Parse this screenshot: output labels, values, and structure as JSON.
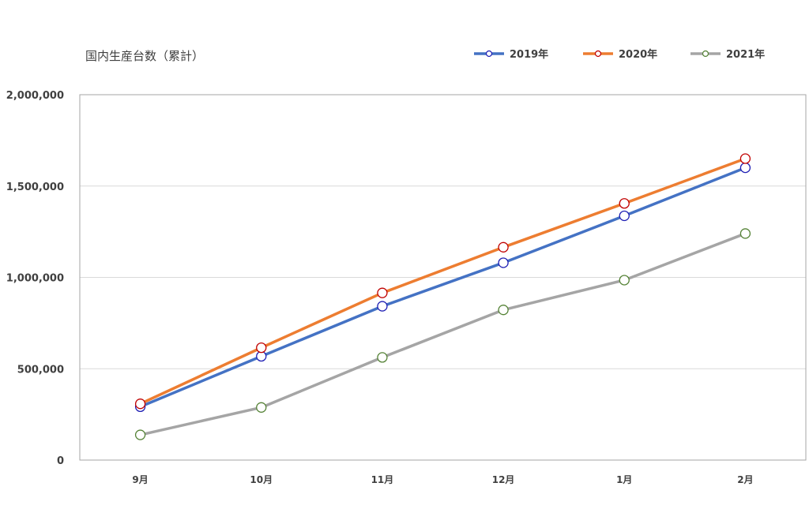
{
  "chart_data": {
    "type": "line",
    "title": "国内生産台数（累計）",
    "categories": [
      "9月",
      "10月",
      "11月",
      "12月",
      "1月",
      "2月"
    ],
    "ylim": [
      0,
      2000000
    ],
    "yticks": [
      0,
      500000,
      1000000,
      1500000,
      2000000
    ],
    "ytick_labels": [
      "0",
      "500,000",
      "1,000,000",
      "1,500,000",
      "2,000,000"
    ],
    "grid": true,
    "legend_position": "top-right",
    "series": [
      {
        "name": "2019年",
        "color": "#4472C4",
        "marker_edge": "#1F1FB4",
        "values": [
          292000,
          568000,
          842000,
          1080000,
          1337000,
          1600000
        ]
      },
      {
        "name": "2020年",
        "color": "#ED7D31",
        "marker_edge": "#C00000",
        "values": [
          308000,
          615000,
          915000,
          1165000,
          1405000,
          1650000
        ]
      },
      {
        "name": "2021年",
        "color": "#A5A5A5",
        "marker_edge": "#548235",
        "values": [
          138000,
          288000,
          562000,
          822000,
          985000,
          1240000
        ]
      }
    ]
  }
}
